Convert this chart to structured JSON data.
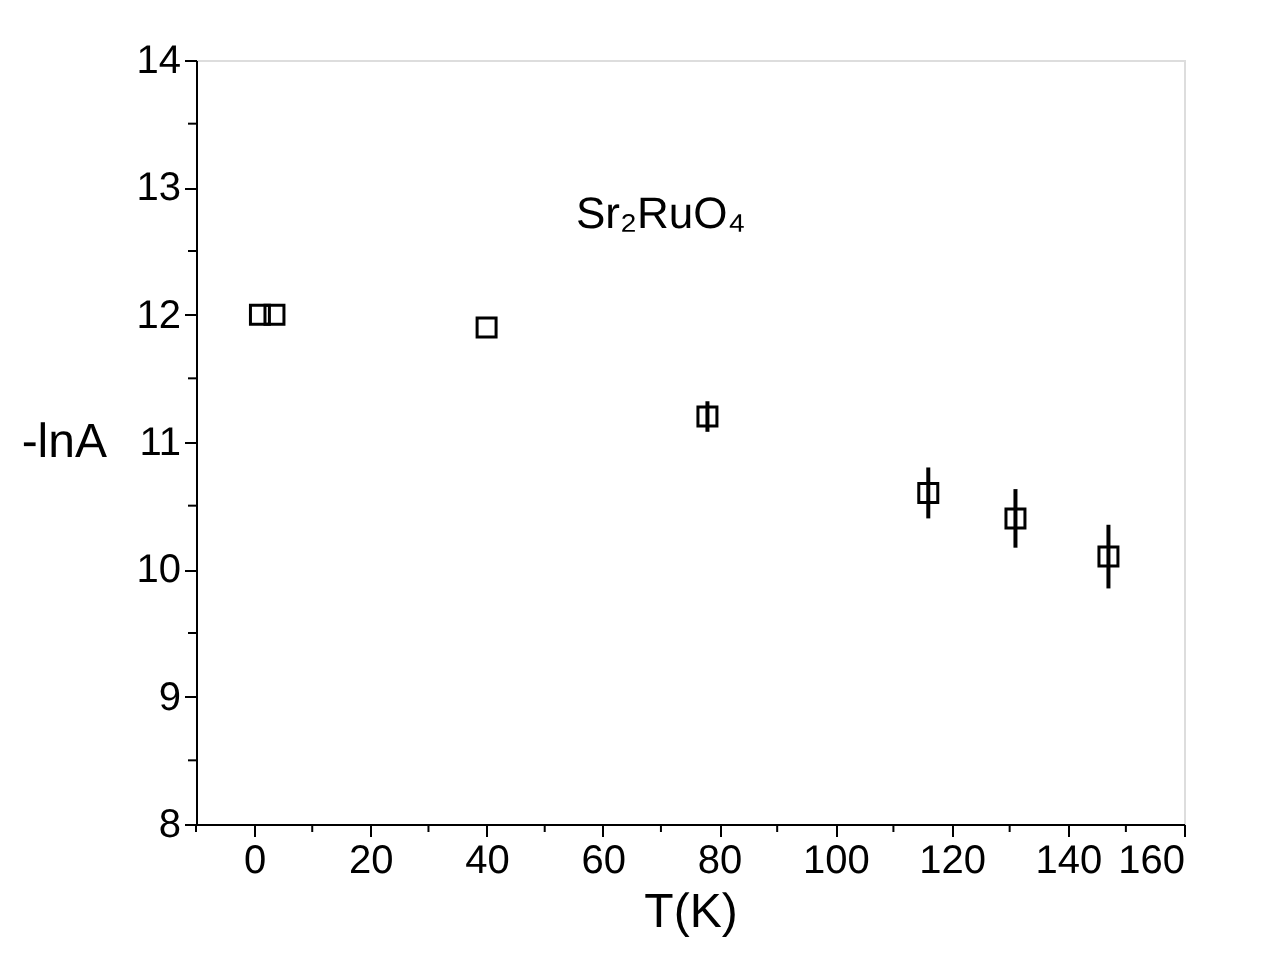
{
  "chart_data": {
    "type": "scatter",
    "xlabel": "T(K)",
    "ylabel": "-lnA",
    "annotations": [
      "Sr₂RuO₄"
    ],
    "x": [
      1,
      3.5,
      40,
      78,
      116,
      131,
      147
    ],
    "series": [
      {
        "color": "#000000",
        "values": [
          12.0,
          12.0,
          11.9,
          11.2,
          10.6,
          10.4,
          10.1
        ],
        "errors": [
          null,
          null,
          null,
          0.12,
          0.2,
          0.23,
          0.25
        ]
      }
    ],
    "xlim": [
      -10,
      160
    ],
    "ylim": [
      8,
      14
    ],
    "xticks": [
      {
        "value": -10,
        "label": null
      },
      0,
      {
        "value": 10,
        "label": null
      },
      20,
      {
        "value": 30,
        "label": null
      },
      40,
      {
        "value": 50,
        "label": null
      },
      60,
      {
        "value": 70,
        "label": null
      },
      80,
      {
        "value": 90,
        "label": null
      },
      100,
      {
        "value": 110,
        "label": null
      },
      120,
      {
        "value": 130,
        "label": null
      },
      140,
      {
        "value": 150,
        "label": null
      },
      160
    ],
    "yticks": [
      8,
      {
        "value": 8.5,
        "label": null
      },
      9,
      {
        "value": 9.5,
        "label": null
      },
      10,
      {
        "value": 10.5,
        "label": null
      },
      11,
      {
        "value": 11.5,
        "label": null
      },
      12,
      {
        "value": 12.5,
        "label": null
      },
      13,
      {
        "value": 13.5,
        "label": null
      },
      14
    ],
    "marker": "square",
    "grid": false
  }
}
